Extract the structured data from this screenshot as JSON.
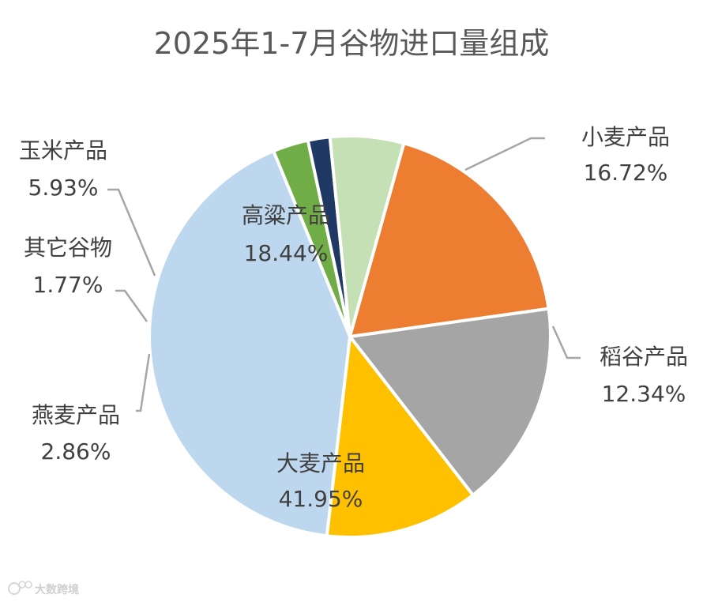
{
  "chart_data": {
    "type": "pie",
    "title": "2025年1-7月谷物进口量组成",
    "slices": [
      {
        "name": "小麦产品",
        "value": 16.72,
        "label": "16.72%",
        "color": "#A5A5A5"
      },
      {
        "name": "稻谷产品",
        "value": 12.34,
        "label": "12.34%",
        "color": "#FFC000"
      },
      {
        "name": "大麦产品",
        "value": 41.95,
        "label": "41.95%",
        "color": "#BDD7EE"
      },
      {
        "name": "燕麦产品",
        "value": 2.86,
        "label": "2.86%",
        "color": "#70AD47"
      },
      {
        "name": "其它谷物",
        "value": 1.77,
        "label": "1.77%",
        "color": "#203864"
      },
      {
        "name": "玉米产品",
        "value": 5.93,
        "label": "5.93%",
        "color": "#C5E0B4"
      },
      {
        "name": "高粱产品",
        "value": 18.44,
        "label": "18.44%",
        "color": "#ED7D31"
      }
    ]
  },
  "watermark": {
    "text": "大数跨境",
    "logo_text": "大数跨境"
  }
}
